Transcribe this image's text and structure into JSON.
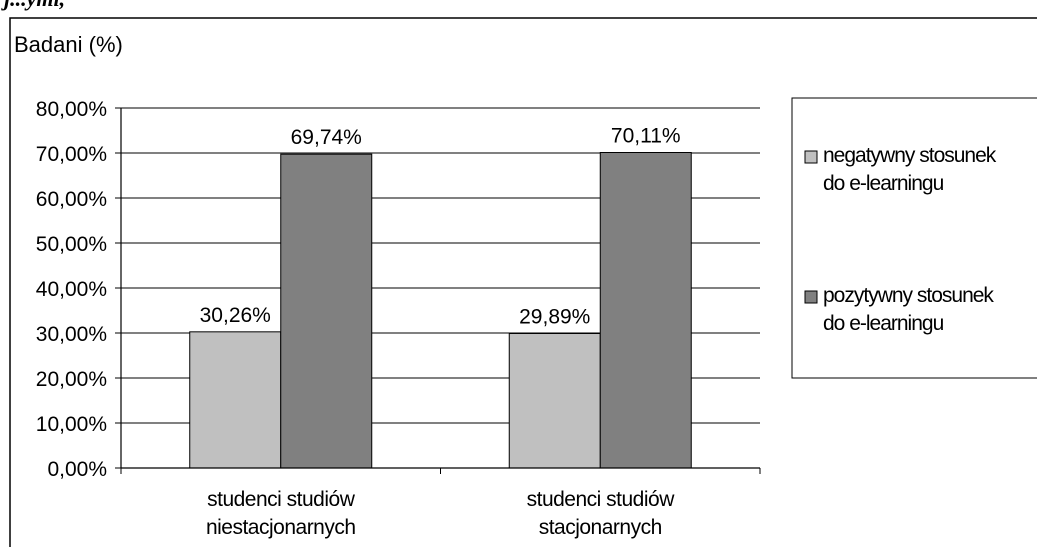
{
  "header_fragment": "j...ymi,",
  "chart_data": {
    "type": "bar",
    "ylabel": "Badani (%)",
    "ylim": [
      0,
      80
    ],
    "yticks": [
      "0,00%",
      "10,00%",
      "20,00%",
      "30,00%",
      "40,00%",
      "50,00%",
      "60,00%",
      "70,00%",
      "80,00%"
    ],
    "grid": true,
    "legend_position": "right",
    "categories": [
      [
        "studenci studiów",
        "niestacjonarnych"
      ],
      [
        "studenci studiów",
        "stacjonarnych"
      ]
    ],
    "series": [
      {
        "name": "negatywny stosunek do e-learningu",
        "name_lines": [
          "negatywny stosunek",
          "do e-learningu"
        ],
        "color": "#c0c0c0",
        "values": [
          30.26,
          29.89
        ],
        "labels": [
          "30,26%",
          "29,89%"
        ]
      },
      {
        "name": "pozytywny stosunek do e-learningu",
        "name_lines": [
          "pozytywny stosunek",
          "do e-learningu"
        ],
        "color": "#808080",
        "values": [
          69.74,
          70.11
        ],
        "labels": [
          "69,74%",
          "70,11%"
        ]
      }
    ]
  }
}
